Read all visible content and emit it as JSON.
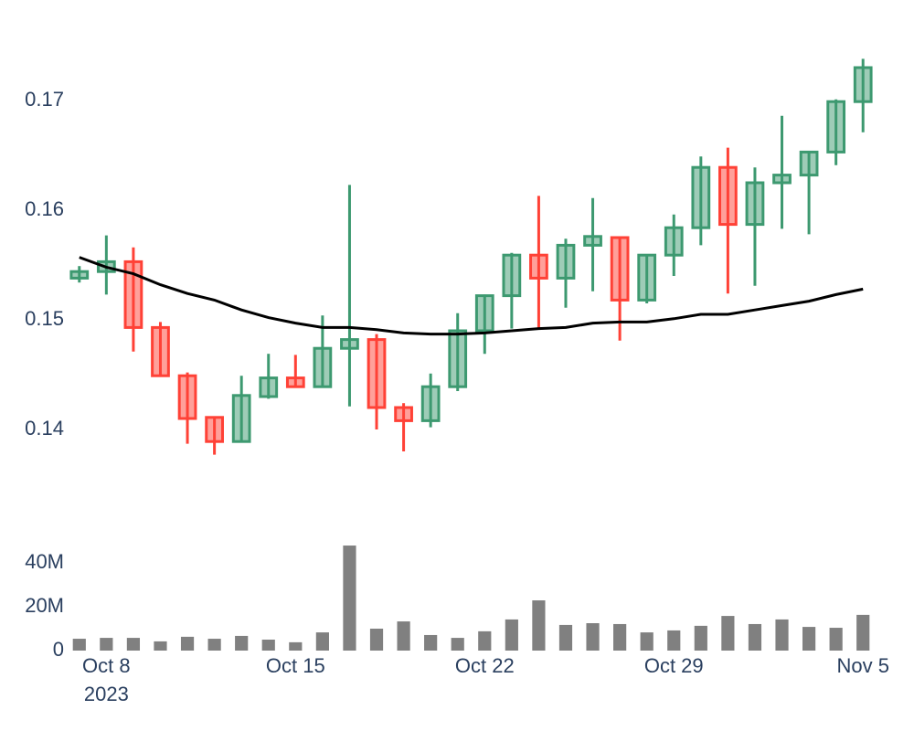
{
  "chart_data": [
    {
      "type": "candlestick",
      "x": [
        "2023-10-07",
        "2023-10-08",
        "2023-10-09",
        "2023-10-10",
        "2023-10-11",
        "2023-10-12",
        "2023-10-13",
        "2023-10-14",
        "2023-10-15",
        "2023-10-16",
        "2023-10-17",
        "2023-10-18",
        "2023-10-19",
        "2023-10-20",
        "2023-10-21",
        "2023-10-22",
        "2023-10-23",
        "2023-10-24",
        "2023-10-25",
        "2023-10-26",
        "2023-10-27",
        "2023-10-28",
        "2023-10-29",
        "2023-10-30",
        "2023-10-31",
        "2023-11-01",
        "2023-11-02",
        "2023-11-03",
        "2023-11-04",
        "2023-11-05"
      ],
      "open": [
        0.1538,
        0.1544,
        0.1553,
        0.1493,
        0.1449,
        0.1411,
        0.1389,
        0.143,
        0.1447,
        0.1439,
        0.1474,
        0.1482,
        0.142,
        0.1408,
        0.1439,
        0.149,
        0.1522,
        0.1559,
        0.1538,
        0.1568,
        0.1575,
        0.1518,
        0.1559,
        0.1584,
        0.1639,
        0.1587,
        0.1625,
        0.1632,
        0.1653,
        0.1699
      ],
      "high": [
        0.1549,
        0.1577,
        0.1566,
        0.1498,
        0.1452,
        0.1411,
        0.1449,
        0.1469,
        0.1468,
        0.1504,
        0.1623,
        0.1487,
        0.1424,
        0.1451,
        0.1506,
        0.1523,
        0.1561,
        0.1613,
        0.1574,
        0.1611,
        0.1575,
        0.1559,
        0.1596,
        0.1649,
        0.1657,
        0.1639,
        0.1686,
        0.1653,
        0.1701,
        0.1738
      ],
      "low": [
        0.1534,
        0.1523,
        0.1471,
        0.1448,
        0.1387,
        0.1377,
        0.1389,
        0.1428,
        0.1439,
        0.1439,
        0.1421,
        0.14,
        0.138,
        0.1402,
        0.1435,
        0.1469,
        0.1492,
        0.1492,
        0.1511,
        0.1526,
        0.1481,
        0.1515,
        0.154,
        0.1568,
        0.1524,
        0.1531,
        0.1583,
        0.1578,
        0.1641,
        0.1671
      ],
      "close": [
        0.1544,
        0.1553,
        0.1493,
        0.1449,
        0.141,
        0.1389,
        0.1431,
        0.1447,
        0.1439,
        0.1474,
        0.1482,
        0.142,
        0.1408,
        0.1439,
        0.149,
        0.1522,
        0.1559,
        0.1538,
        0.1568,
        0.1576,
        0.1518,
        0.1559,
        0.1584,
        0.1639,
        0.1587,
        0.1625,
        0.1632,
        0.1653,
        0.1699,
        0.173
      ],
      "increasing_color": "#3d9970",
      "decreasing_color": "#ff4136",
      "line": {
        "color": "#000000",
        "values": [
          0.1557,
          0.1548,
          0.1542,
          0.1532,
          0.1524,
          0.1518,
          0.1509,
          0.1502,
          0.1497,
          0.1493,
          0.1493,
          0.1491,
          0.1488,
          0.1487,
          0.1487,
          0.1488,
          0.149,
          0.1492,
          0.1493,
          0.1497,
          0.1498,
          0.1498,
          0.1501,
          0.1505,
          0.1505,
          0.1509,
          0.1513,
          0.1517,
          0.1523,
          0.1528
        ]
      },
      "xlim": [
        "2023-10-06T12:00",
        "2023-11-05T12:00"
      ],
      "ylim": [
        0.137,
        0.1745
      ],
      "yticks": [
        0.14,
        0.15,
        0.16,
        0.17
      ]
    },
    {
      "type": "bar",
      "x": [
        "2023-10-07",
        "2023-10-08",
        "2023-10-09",
        "2023-10-10",
        "2023-10-11",
        "2023-10-12",
        "2023-10-13",
        "2023-10-14",
        "2023-10-15",
        "2023-10-16",
        "2023-10-17",
        "2023-10-18",
        "2023-10-19",
        "2023-10-20",
        "2023-10-21",
        "2023-10-22",
        "2023-10-23",
        "2023-10-24",
        "2023-10-25",
        "2023-10-26",
        "2023-10-27",
        "2023-10-28",
        "2023-10-29",
        "2023-10-30",
        "2023-10-31",
        "2023-11-01",
        "2023-11-02",
        "2023-11-03",
        "2023-11-04",
        "2023-11-05"
      ],
      "values": [
        5400000,
        5800000,
        5800000,
        4200000,
        6300000,
        5400000,
        6700000,
        5000000,
        3800000,
        8300000,
        47900000,
        10000000,
        13300000,
        7100000,
        5800000,
        8800000,
        14200000,
        22900000,
        11700000,
        12500000,
        12100000,
        8300000,
        9200000,
        11300000,
        15800000,
        12100000,
        14200000,
        10800000,
        10400000,
        16300000
      ],
      "color": "#808080",
      "xlim": [
        "2023-10-06T12:00",
        "2023-11-05T12:00"
      ],
      "ylim": [
        0,
        50000000
      ],
      "yticks": [
        0,
        {
          "value": 20000000,
          "label": "20M"
        },
        {
          "value": 40000000,
          "label": "40M"
        }
      ],
      "xticks": [
        {
          "value": "2023-10-08",
          "label": "Oct 8",
          "sublabel": "2023"
        },
        {
          "value": "2023-10-15",
          "label": "Oct 15"
        },
        {
          "value": "2023-10-22",
          "label": "Oct 22"
        },
        {
          "value": "2023-10-29",
          "label": "Oct 29"
        },
        {
          "value": "2023-11-05",
          "label": "Nov 5"
        }
      ]
    }
  ]
}
